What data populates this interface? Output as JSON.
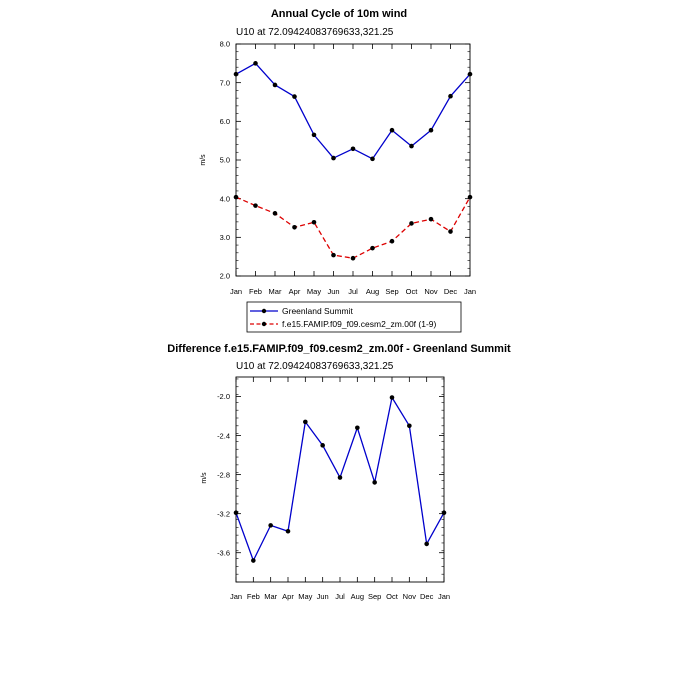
{
  "chart_data": [
    {
      "type": "line",
      "title": "Annual Cycle of 10m wind",
      "subtitle": "U10 at 72.09424083769633,321.25",
      "ylabel": "m/s",
      "xlabel": "",
      "ylim": [
        2.0,
        8.0
      ],
      "yticks": [
        "2.0",
        "3.0",
        "4.0",
        "5.0",
        "6.0",
        "7.0",
        "8.0"
      ],
      "categories": [
        "Jan",
        "Feb",
        "Mar",
        "Apr",
        "May",
        "Jun",
        "Jul",
        "Aug",
        "Sep",
        "Oct",
        "Nov",
        "Dec",
        "Jan"
      ],
      "series": [
        {
          "name": "Greenland Summit",
          "color": "#0000cc",
          "dashed": false,
          "values": [
            7.22,
            7.5,
            6.94,
            6.64,
            5.65,
            5.05,
            5.29,
            5.03,
            5.77,
            5.36,
            5.77,
            6.65,
            7.22
          ]
        },
        {
          "name": "f.e15.FAMIP.f09_f09.cesm2_zm.00f (1-9)",
          "color": "#dd0000",
          "dashed": true,
          "values": [
            4.04,
            3.82,
            3.62,
            3.26,
            3.39,
            2.54,
            2.46,
            2.72,
            2.9,
            3.36,
            3.47,
            3.15,
            4.04
          ]
        }
      ],
      "legend": [
        "Greenland Summit",
        "f.e15.FAMIP.f09_f09.cesm2_zm.00f (1-9)"
      ]
    },
    {
      "type": "line",
      "title": "Difference f.e15.FAMIP.f09_f09.cesm2_zm.00f - Greenland Summit",
      "subtitle": "U10 at 72.09424083769633,321.25",
      "ylabel": "m/s",
      "xlabel": "",
      "ylim": [
        -3.9,
        -1.8
      ],
      "yticks": [
        "-3.6",
        "-3.2",
        "-2.8",
        "-2.4",
        "-2.0"
      ],
      "categories": [
        "Jan",
        "Feb",
        "Mar",
        "Apr",
        "May",
        "Jun",
        "Jul",
        "Aug",
        "Sep",
        "Oct",
        "Nov",
        "Dec",
        "Jan"
      ],
      "series": [
        {
          "name": "Difference",
          "color": "#0000cc",
          "dashed": false,
          "values": [
            -3.19,
            -3.68,
            -3.32,
            -3.38,
            -2.26,
            -2.5,
            -2.83,
            -2.32,
            -2.88,
            -2.01,
            -2.3,
            -3.51,
            -3.19
          ]
        }
      ]
    }
  ]
}
